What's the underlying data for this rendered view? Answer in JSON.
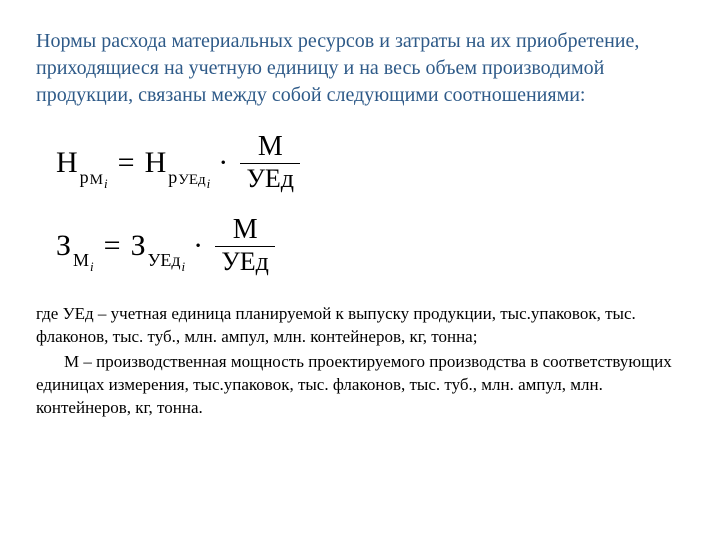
{
  "title_color": "#2e5a88",
  "title_text": "Нормы расхода материальных ресурсов и затраты на их приобретение, приходящиеся на учетную единицу и на весь объем производимой продукции, связаны между собой следующими соотношениями:",
  "formula1": {
    "lhs_main": "Н",
    "lhs_sub1": "р",
    "lhs_sub2a": "М",
    "lhs_sub2b": "i",
    "rhs_main": "Н",
    "rhs_sub1": "р",
    "rhs_sub2a": "УЕд",
    "rhs_sub2b": "i",
    "frac_num": "М",
    "frac_den": "УЕд"
  },
  "formula2": {
    "lhs_main": "З",
    "lhs_sub1": "М",
    "lhs_sub1b": "i",
    "rhs_main": "З",
    "rhs_sub1": "УЕд",
    "rhs_sub1b": "i",
    "frac_num": "М",
    "frac_den": "УЕд"
  },
  "explain_p1": "где УЕд – учетная единица планируемой к выпуску продукции, тыс.упаковок, тыс. флаконов, тыс. туб., млн. ампул, млн. контейнеров, кг, тонна;",
  "explain_p2": "М – производственная мощность проектируемого производства в соответствующих единицах измерения, тыс.упаковок, тыс. флаконов, тыс. туб., млн. ампул, млн. контейнеров, кг, тонна."
}
